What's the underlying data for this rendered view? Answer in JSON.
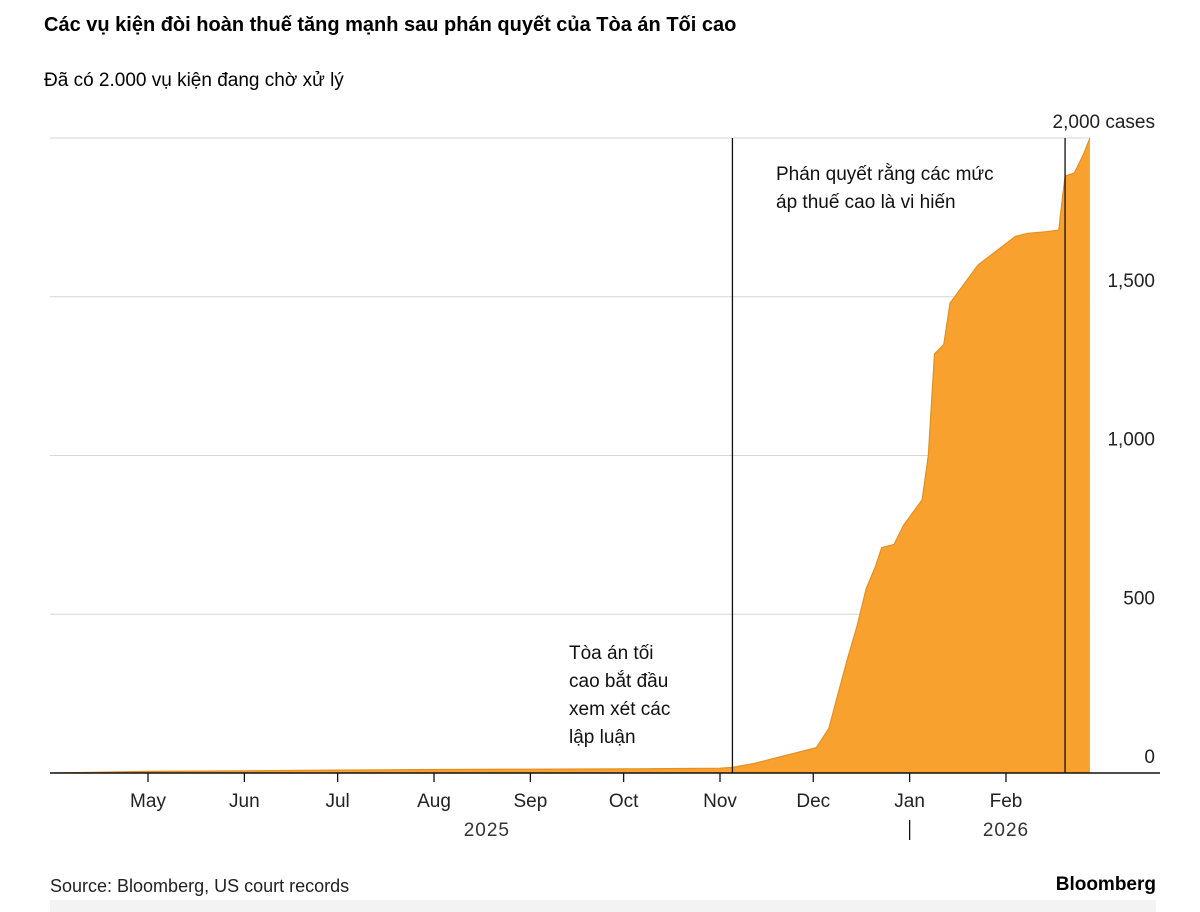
{
  "header": {
    "title": "Các vụ kiện đòi hoàn thuế tăng mạnh sau phán quyết của Tòa án Tối cao",
    "subtitle": "Đã có 2.000 vụ kiện đang chờ xử lý"
  },
  "footer": {
    "source": "Source: Bloomberg, US court records",
    "brand": "Bloomberg"
  },
  "annotations": {
    "arguments": [
      "Tòa án tối",
      "cao bắt đầu",
      "xem xét các",
      "lập luận"
    ],
    "ruling": [
      "Phán quyết rằng các mức",
      "áp thuế cao là vi hiến"
    ]
  },
  "chart_data": {
    "type": "area",
    "x_unit": "date",
    "y_axis": {
      "range": [
        0,
        2000
      ],
      "ticks": [
        0,
        500,
        1000,
        1500,
        2000
      ],
      "tick_labels": [
        "0",
        "500",
        "1,000",
        "1,500",
        "2,000 cases"
      ],
      "position": "right"
    },
    "x_axis": {
      "range": [
        "2025-04-01",
        "2026-02-28"
      ],
      "months": [
        {
          "label": "May",
          "date": "2025-05-01"
        },
        {
          "label": "Jun",
          "date": "2025-06-01"
        },
        {
          "label": "Jul",
          "date": "2025-07-01"
        },
        {
          "label": "Aug",
          "date": "2025-08-01"
        },
        {
          "label": "Sep",
          "date": "2025-09-01"
        },
        {
          "label": "Oct",
          "date": "2025-10-01"
        },
        {
          "label": "Nov",
          "date": "2025-11-01"
        },
        {
          "label": "Dec",
          "date": "2025-12-01"
        },
        {
          "label": "Jan",
          "date": "2026-01-01"
        },
        {
          "label": "Feb",
          "date": "2026-02-01"
        }
      ],
      "years": [
        {
          "label": "2025",
          "date": "2025-08-18"
        },
        {
          "label": "2026",
          "date": "2026-02-01"
        }
      ],
      "year_divider": "2026-01-01"
    },
    "grid": true,
    "fill_color": "#f9a12e",
    "reference_lines": [
      {
        "date": "2025-11-05",
        "label": "Tòa án tối cao bắt đầu xem xét các lập luận"
      },
      {
        "date": "2026-02-20",
        "label": "Phán quyết rằng các mức áp thuế cao là vi hiến"
      }
    ],
    "points": [
      [
        "2025-04-01",
        0
      ],
      [
        "2025-05-01",
        5
      ],
      [
        "2025-06-01",
        7
      ],
      [
        "2025-07-01",
        9
      ],
      [
        "2025-08-01",
        11
      ],
      [
        "2025-09-01",
        12
      ],
      [
        "2025-10-01",
        13
      ],
      [
        "2025-11-01",
        15
      ],
      [
        "2025-11-05",
        18
      ],
      [
        "2025-11-12",
        30
      ],
      [
        "2025-11-18",
        45
      ],
      [
        "2025-11-24",
        60
      ],
      [
        "2025-11-28",
        70
      ],
      [
        "2025-12-02",
        80
      ],
      [
        "2025-12-06",
        140
      ],
      [
        "2025-12-09",
        250
      ],
      [
        "2025-12-12",
        360
      ],
      [
        "2025-12-15",
        460
      ],
      [
        "2025-12-18",
        580
      ],
      [
        "2025-12-21",
        650
      ],
      [
        "2025-12-23",
        710
      ],
      [
        "2025-12-27",
        720
      ],
      [
        "2025-12-30",
        780
      ],
      [
        "2026-01-02",
        820
      ],
      [
        "2026-01-05",
        860
      ],
      [
        "2026-01-07",
        1000
      ],
      [
        "2026-01-09",
        1320
      ],
      [
        "2026-01-12",
        1350
      ],
      [
        "2026-01-14",
        1480
      ],
      [
        "2026-01-17",
        1520
      ],
      [
        "2026-01-20",
        1560
      ],
      [
        "2026-01-23",
        1600
      ],
      [
        "2026-01-27",
        1630
      ],
      [
        "2026-01-31",
        1660
      ],
      [
        "2026-02-04",
        1690
      ],
      [
        "2026-02-08",
        1700
      ],
      [
        "2026-02-14",
        1705
      ],
      [
        "2026-02-18",
        1710
      ],
      [
        "2026-02-19",
        1800
      ],
      [
        "2026-02-20",
        1880
      ],
      [
        "2026-02-23",
        1890
      ],
      [
        "2026-02-26",
        1950
      ],
      [
        "2026-02-28",
        2000
      ]
    ]
  }
}
